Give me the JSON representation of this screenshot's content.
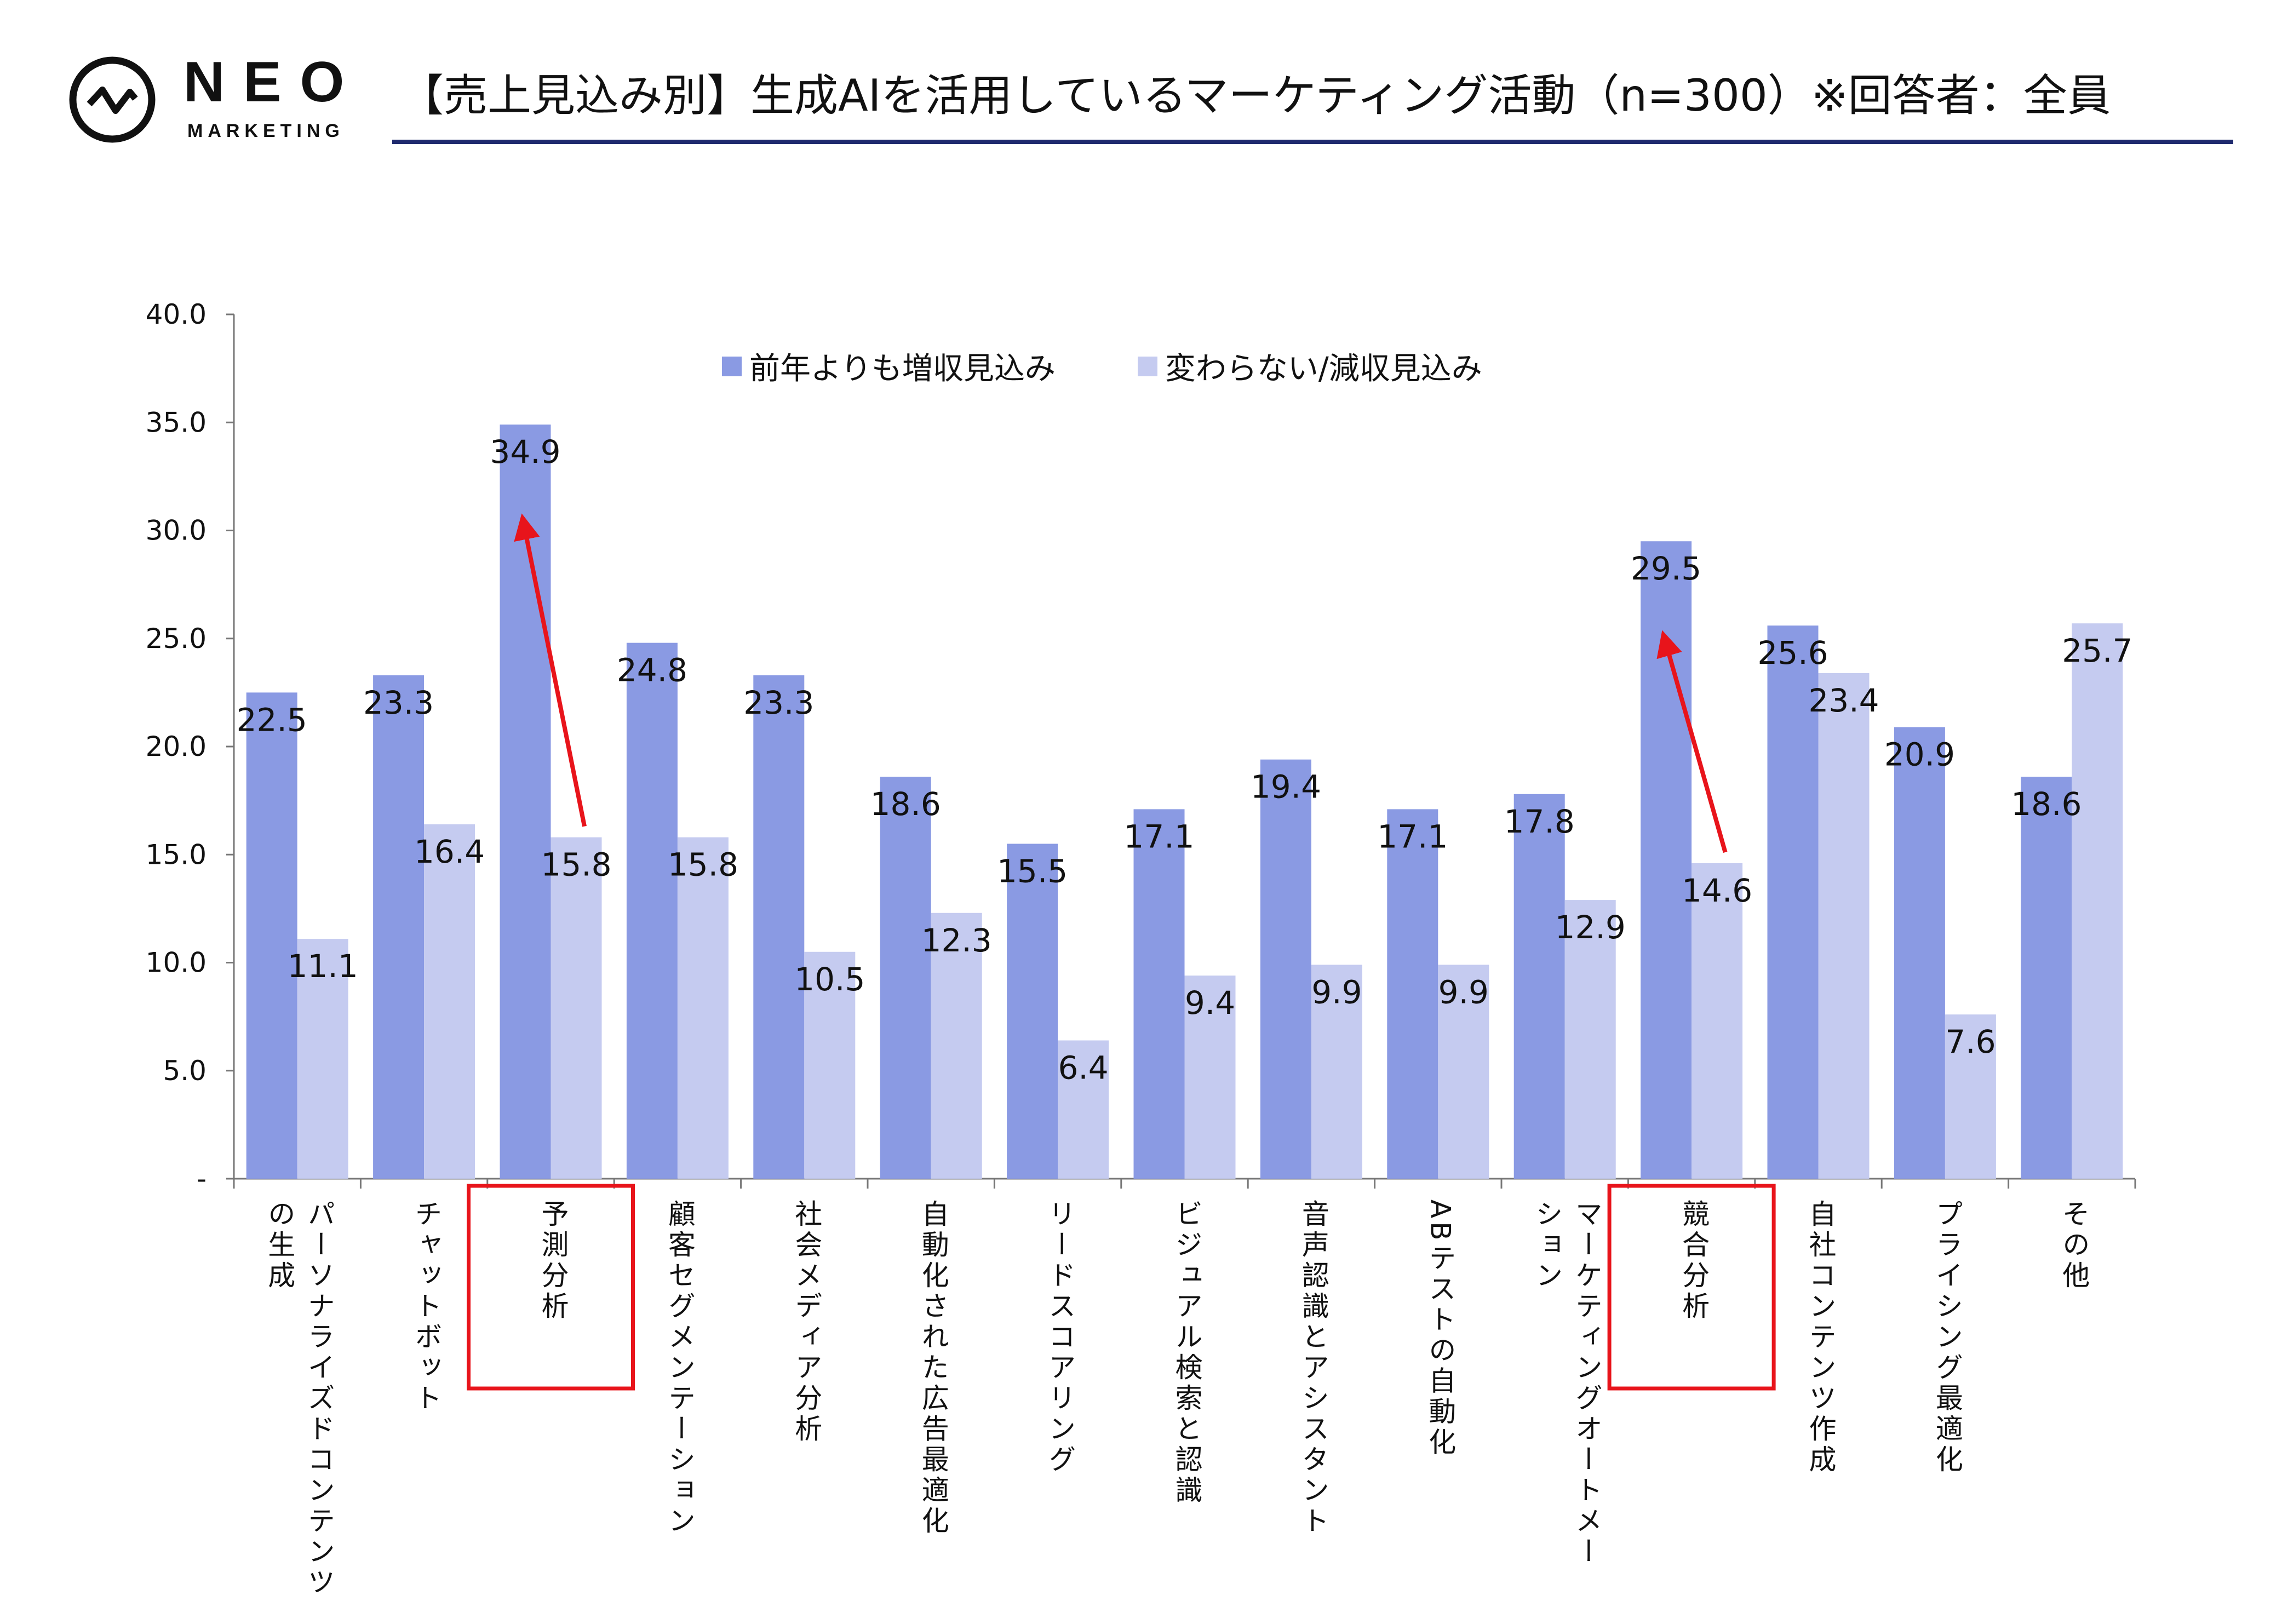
{
  "logo": {
    "name": "NEO",
    "sub": "MARKETING"
  },
  "title": "【売上見込み別】生成AIを活用しているマーケティング活動（n=300）※回答者：全員",
  "colors": {
    "series1": "#8a9ae3",
    "series2": "#c5cbf0",
    "title_rule": "#1f2a6e",
    "highlight": "#e8141b"
  },
  "chart_data": {
    "type": "bar",
    "title": "【売上見込み別】生成AIを活用しているマーケティング活動（n=300）※回答者：全員",
    "xlabel": "",
    "ylabel": "",
    "ylim": [
      0,
      40
    ],
    "yticks": [
      "-",
      "5.0",
      "10.0",
      "15.0",
      "20.0",
      "25.0",
      "30.0",
      "35.0",
      "40.0"
    ],
    "legend_position": "top-center",
    "grid": false,
    "categories": [
      "パーソナライズドコンテンツ\nの生成",
      "チャットボット",
      "予測分析",
      "顧客セグメンテーション",
      "社会メディア分析",
      "自動化された広告最適化",
      "リードスコアリング",
      "ビジュアル検索と認識",
      "音声認識とアシスタント",
      "ABテストの自動化",
      "マーケティングオートメー\nション",
      "競合分析",
      "自社コンテンツ作成",
      "プライシング最適化",
      "その他"
    ],
    "series": [
      {
        "name": "前年よりも増収見込み",
        "values": [
          22.5,
          23.3,
          34.9,
          24.8,
          23.3,
          18.6,
          15.5,
          17.1,
          19.4,
          17.1,
          17.8,
          29.5,
          25.6,
          20.9,
          18.6
        ]
      },
      {
        "name": "変わらない/減収見込み",
        "values": [
          11.1,
          16.4,
          15.8,
          15.8,
          10.5,
          12.3,
          6.4,
          9.4,
          9.9,
          9.9,
          12.9,
          14.6,
          23.4,
          7.6,
          25.7
        ]
      }
    ],
    "highlighted_categories": [
      2,
      11
    ],
    "annotations": [
      {
        "type": "arrow",
        "from": {
          "category": 2,
          "series": 1
        },
        "to": {
          "category": 2,
          "series": 0
        }
      },
      {
        "type": "arrow",
        "from": {
          "category": 11,
          "series": 1
        },
        "to": {
          "category": 11,
          "series": 0
        }
      }
    ]
  }
}
